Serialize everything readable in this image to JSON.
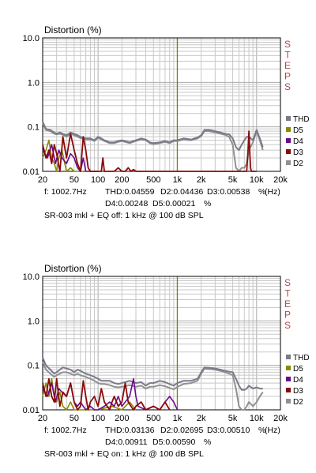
{
  "colors": {
    "THD": "#7a7a8a",
    "D5": "#8a8a00",
    "D4": "#6a0a8a",
    "D3": "#8a0a0a",
    "D2": "#909090",
    "marker": "#8a7a00",
    "steps": "#b04848",
    "grid": "#c8c8c8"
  },
  "chart_data": [
    {
      "type": "line",
      "title": "Distortion (%)",
      "xscale": "log",
      "yscale": "log",
      "xlim": [
        20,
        20000
      ],
      "ylim": [
        0.01,
        10
      ],
      "grid": true,
      "legend_position": "right",
      "watermark": "STEPS",
      "xticks": [
        {
          "v": 20,
          "label": "20"
        },
        {
          "v": 50,
          "label": "50"
        },
        {
          "v": 100,
          "label": "100"
        },
        {
          "v": 200,
          "label": "200"
        },
        {
          "v": 500,
          "label": "500"
        },
        {
          "v": 1000,
          "label": "1k"
        },
        {
          "v": 2000,
          "label": "2k"
        },
        {
          "v": 5000,
          "label": "5k"
        },
        {
          "v": 10000,
          "label": "10k"
        },
        {
          "v": 20000,
          "label": "20k"
        }
      ],
      "yticks": [
        {
          "v": 10,
          "label": "10.0"
        },
        {
          "v": 1,
          "label": "1.0"
        },
        {
          "v": 0.1,
          "label": "0.1"
        },
        {
          "v": 0.01,
          "label": "0.01"
        }
      ],
      "x_unit": "(Hz)",
      "marker_freq": 1000,
      "legend": [
        "THD",
        "D5",
        "D4",
        "D3",
        "D2"
      ],
      "readout_line1": [
        "f: 1002.7Hz",
        "THD:0.04559",
        "D2:0.04436",
        "D3:0.00538",
        "%"
      ],
      "readout_line2": [
        "D4:0.00248",
        "D5:0.00021",
        "%"
      ],
      "caption": "SR-003 mkl + EQ off: 1 kHz @ 100 dB SPL",
      "series": [
        {
          "name": "THD",
          "x": [
            20,
            22,
            25,
            28,
            30,
            33,
            36,
            40,
            45,
            50,
            55,
            60,
            70,
            80,
            90,
            100,
            110,
            120,
            140,
            160,
            180,
            200,
            250,
            300,
            350,
            400,
            450,
            500,
            600,
            700,
            800,
            900,
            1000,
            1200,
            1500,
            1800,
            2000,
            2200,
            2500,
            3000,
            3500,
            4000,
            4500,
            5000,
            5500,
            6000,
            6500,
            7000,
            7500,
            8000,
            9000,
            10000,
            11000,
            12000
          ],
          "y": [
            0.13,
            0.09,
            0.085,
            0.075,
            0.07,
            0.075,
            0.07,
            0.065,
            0.075,
            0.07,
            0.065,
            0.06,
            0.055,
            0.055,
            0.05,
            0.06,
            0.055,
            0.05,
            0.045,
            0.045,
            0.048,
            0.05,
            0.045,
            0.05,
            0.055,
            0.052,
            0.045,
            0.043,
            0.045,
            0.048,
            0.045,
            0.05,
            0.05,
            0.055,
            0.052,
            0.058,
            0.065,
            0.085,
            0.085,
            0.08,
            0.075,
            0.07,
            0.068,
            0.055,
            0.035,
            0.03,
            0.04,
            0.05,
            0.06,
            0.06,
            0.05,
            0.085,
            0.055,
            0.035
          ]
        },
        {
          "name": "D2",
          "x": [
            20,
            22,
            25,
            28,
            30,
            33,
            36,
            40,
            45,
            50,
            55,
            60,
            70,
            80,
            90,
            100,
            110,
            120,
            140,
            160,
            180,
            200,
            250,
            300,
            350,
            400,
            450,
            500,
            600,
            700,
            800,
            900,
            1000,
            1200,
            1500,
            1800,
            2000,
            2200,
            2500,
            3000,
            3500,
            4000,
            4500,
            5000,
            5500,
            6000,
            6500,
            7000,
            7500,
            8000,
            9000,
            10000,
            11000,
            12000
          ],
          "y": [
            0.12,
            0.085,
            0.08,
            0.07,
            0.068,
            0.07,
            0.066,
            0.06,
            0.07,
            0.065,
            0.06,
            0.056,
            0.052,
            0.052,
            0.048,
            0.057,
            0.052,
            0.048,
            0.043,
            0.043,
            0.046,
            0.048,
            0.043,
            0.048,
            0.052,
            0.05,
            0.043,
            0.041,
            0.043,
            0.046,
            0.043,
            0.048,
            0.048,
            0.052,
            0.05,
            0.055,
            0.062,
            0.08,
            0.08,
            0.075,
            0.07,
            0.066,
            0.06,
            0.04,
            0.012,
            0.01,
            0.012,
            0.012,
            0.015,
            0.03,
            0.045,
            0.08,
            0.05,
            0.03
          ]
        },
        {
          "name": "D5",
          "x": [
            20,
            22,
            24,
            26,
            28,
            30,
            32,
            35,
            38,
            40,
            45,
            50,
            55,
            60,
            65
          ],
          "y": [
            0.02,
            0.03,
            0.05,
            0.02,
            0.015,
            0.01,
            0.02,
            0.03,
            0.015,
            0.01,
            0.012,
            0.01,
            0.01,
            0.01,
            0.01
          ]
        },
        {
          "name": "D4",
          "x": [
            20,
            23,
            26,
            29,
            32,
            35,
            40,
            45,
            50,
            55,
            60,
            65,
            70,
            80,
            90,
            100
          ],
          "y": [
            0.03,
            0.02,
            0.04,
            0.015,
            0.03,
            0.02,
            0.015,
            0.025,
            0.02,
            0.012,
            0.01,
            0.02,
            0.01,
            0.01,
            0.01,
            0.01
          ]
        },
        {
          "name": "D3",
          "x": [
            20,
            22,
            24,
            26,
            28,
            30,
            33,
            36,
            40,
            45,
            50,
            55,
            60,
            65,
            70,
            75,
            80,
            90,
            100,
            110,
            115,
            120,
            125,
            130,
            140,
            160,
            180,
            200,
            220,
            240,
            260,
            280,
            300,
            3000,
            7500,
            7800,
            8000,
            8200,
            8400,
            8600,
            9000,
            10000
          ],
          "y": [
            0.04,
            0.02,
            0.03,
            0.015,
            0.04,
            0.025,
            0.01,
            0.06,
            0.02,
            0.07,
            0.03,
            0.015,
            0.01,
            0.06,
            0.03,
            0.012,
            0.01,
            0.01,
            0.01,
            0.01,
            0.02,
            0.01,
            0.01,
            0.01,
            0.01,
            0.01,
            0.012,
            0.01,
            0.01,
            0.012,
            0.01,
            0.011,
            0.01,
            0.01,
            0.01,
            0.03,
            0.08,
            0.03,
            0.012,
            0.01,
            0.01,
            0.01
          ]
        }
      ]
    },
    {
      "type": "line",
      "title": "Distortion (%)",
      "xscale": "log",
      "yscale": "log",
      "xlim": [
        20,
        20000
      ],
      "ylim": [
        0.01,
        10
      ],
      "grid": true,
      "legend_position": "right",
      "watermark": "STEPS",
      "xticks": [
        {
          "v": 20,
          "label": "20"
        },
        {
          "v": 50,
          "label": "50"
        },
        {
          "v": 100,
          "label": "100"
        },
        {
          "v": 200,
          "label": "200"
        },
        {
          "v": 500,
          "label": "500"
        },
        {
          "v": 1000,
          "label": "1k"
        },
        {
          "v": 2000,
          "label": "2k"
        },
        {
          "v": 5000,
          "label": "5k"
        },
        {
          "v": 10000,
          "label": "10k"
        },
        {
          "v": 20000,
          "label": "20k"
        }
      ],
      "yticks": [
        {
          "v": 10,
          "label": "10.0"
        },
        {
          "v": 1,
          "label": "1.0"
        },
        {
          "v": 0.1,
          "label": "0.1"
        },
        {
          "v": 0.01,
          "label": "0.01"
        }
      ],
      "x_unit": "(Hz)",
      "marker_freq": 1000,
      "legend": [
        "THD",
        "D5",
        "D4",
        "D3",
        "D2"
      ],
      "readout_line1": [
        "f: 1002.7Hz",
        "THD:0.03136",
        "D2:0.02695",
        "D3:0.00510",
        "%"
      ],
      "readout_line2": [
        "D4:0.00911",
        "D5:0.00590",
        "%"
      ],
      "caption": "SR-003 mkl + EQ on: 1 kHz @ 100 dB SPL",
      "series": [
        {
          "name": "THD",
          "x": [
            20,
            22,
            25,
            28,
            30,
            33,
            36,
            40,
            45,
            50,
            55,
            60,
            70,
            80,
            90,
            100,
            110,
            120,
            140,
            160,
            180,
            200,
            250,
            300,
            350,
            400,
            450,
            500,
            600,
            700,
            800,
            900,
            1000,
            1200,
            1500,
            1800,
            2000,
            2200,
            2500,
            3000,
            3500,
            4000,
            4500,
            5000,
            5500,
            6000,
            6500,
            7000,
            7500,
            8000,
            9000,
            10000,
            11000,
            12000
          ],
          "y": [
            0.15,
            0.1,
            0.08,
            0.065,
            0.07,
            0.08,
            0.09,
            0.085,
            0.08,
            0.07,
            0.08,
            0.075,
            0.065,
            0.06,
            0.055,
            0.05,
            0.045,
            0.045,
            0.045,
            0.04,
            0.038,
            0.04,
            0.045,
            0.04,
            0.042,
            0.035,
            0.04,
            0.04,
            0.045,
            0.042,
            0.038,
            0.035,
            0.04,
            0.045,
            0.045,
            0.05,
            0.07,
            0.09,
            0.088,
            0.085,
            0.08,
            0.075,
            0.072,
            0.07,
            0.05,
            0.035,
            0.028,
            0.028,
            0.03,
            0.035,
            0.03,
            0.032,
            0.03,
            0.03
          ]
        },
        {
          "name": "D2",
          "x": [
            20,
            22,
            25,
            28,
            30,
            33,
            36,
            40,
            45,
            50,
            55,
            60,
            70,
            80,
            90,
            100,
            110,
            120,
            140,
            160,
            180,
            200,
            250,
            300,
            350,
            400,
            450,
            500,
            600,
            700,
            800,
            900,
            1000,
            1200,
            1500,
            1800,
            2000,
            2200,
            2500,
            3000,
            3500,
            4000,
            4500,
            5000,
            5500,
            6000,
            6500,
            7000,
            7500,
            8000,
            9000,
            10000,
            11000,
            12000
          ],
          "y": [
            0.12,
            0.08,
            0.065,
            0.055,
            0.06,
            0.065,
            0.07,
            0.07,
            0.065,
            0.06,
            0.065,
            0.06,
            0.055,
            0.05,
            0.045,
            0.04,
            0.038,
            0.038,
            0.036,
            0.033,
            0.032,
            0.033,
            0.036,
            0.033,
            0.035,
            0.03,
            0.033,
            0.033,
            0.036,
            0.034,
            0.031,
            0.029,
            0.033,
            0.038,
            0.04,
            0.045,
            0.065,
            0.085,
            0.083,
            0.08,
            0.075,
            0.07,
            0.065,
            0.06,
            0.03,
            0.012,
            0.01,
            0.01,
            0.012,
            0.015,
            0.012,
            0.015,
            0.02,
            0.025
          ]
        },
        {
          "name": "D5",
          "x": [
            20,
            22,
            24,
            26,
            28,
            30,
            33,
            36,
            40,
            45,
            50,
            55,
            60,
            70,
            80,
            100,
            150,
            200,
            250,
            300
          ],
          "y": [
            0.02,
            0.04,
            0.02,
            0.05,
            0.02,
            0.015,
            0.025,
            0.012,
            0.01,
            0.015,
            0.01,
            0.01,
            0.01,
            0.01,
            0.01,
            0.01,
            0.012,
            0.01,
            0.015,
            0.01
          ]
        },
        {
          "name": "D4",
          "x": [
            20,
            23,
            26,
            29,
            32,
            35,
            40,
            45,
            50,
            55,
            60,
            65,
            70,
            80,
            90,
            100,
            120,
            140,
            160,
            180,
            200,
            250,
            280,
            300,
            320,
            400,
            500,
            600,
            700,
            800,
            900,
            1000
          ],
          "y": [
            0.03,
            0.02,
            0.04,
            0.015,
            0.03,
            0.025,
            0.02,
            0.04,
            0.015,
            0.012,
            0.015,
            0.012,
            0.01,
            0.012,
            0.01,
            0.01,
            0.012,
            0.015,
            0.012,
            0.02,
            0.012,
            0.02,
            0.05,
            0.02,
            0.012,
            0.01,
            0.012,
            0.01,
            0.015,
            0.02,
            0.015,
            0.01
          ]
        },
        {
          "name": "D3",
          "x": [
            20,
            22,
            24,
            26,
            28,
            30,
            33,
            36,
            40,
            45,
            50,
            55,
            60,
            65,
            70,
            75,
            80,
            90,
            100,
            110,
            120,
            130,
            140,
            150,
            160,
            180,
            200,
            220,
            240,
            260,
            280,
            300,
            350,
            400,
            500,
            600,
            700,
            800
          ],
          "y": [
            0.04,
            0.02,
            0.05,
            0.02,
            0.015,
            0.05,
            0.012,
            0.025,
            0.02,
            0.04,
            0.015,
            0.01,
            0.012,
            0.045,
            0.02,
            0.01,
            0.015,
            0.02,
            0.012,
            0.03,
            0.015,
            0.012,
            0.01,
            0.015,
            0.02,
            0.012,
            0.015,
            0.04,
            0.015,
            0.012,
            0.01,
            0.012,
            0.015,
            0.01,
            0.012,
            0.01,
            0.015,
            0.01
          ]
        }
      ]
    }
  ]
}
